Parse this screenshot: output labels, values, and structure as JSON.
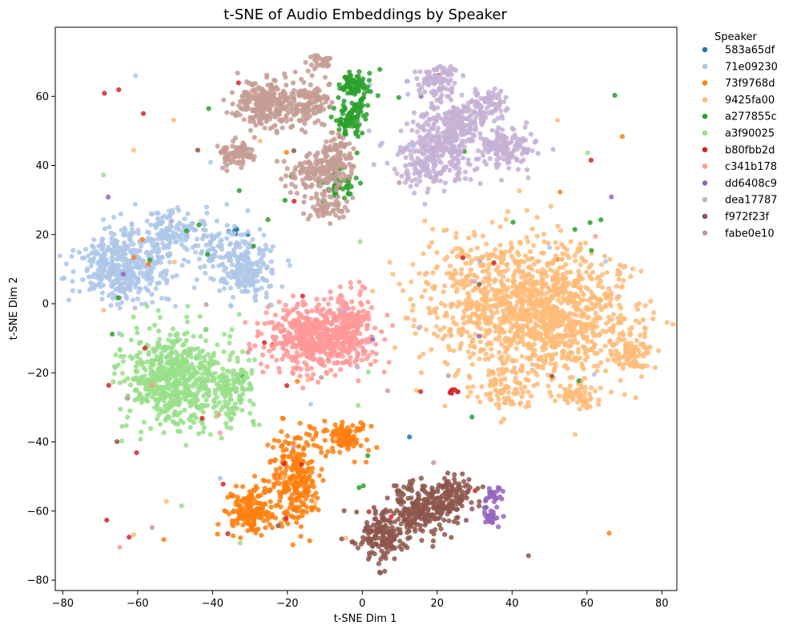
{
  "chart_data": {
    "type": "scatter",
    "title": "t-SNE of Audio Embeddings by Speaker",
    "xlabel": "t-SNE Dim 1",
    "ylabel": "t-SNE Dim 2",
    "xlim": [
      -82,
      84
    ],
    "ylim": [
      -83,
      80
    ],
    "xticks": [
      -80,
      -60,
      -40,
      -20,
      0,
      20,
      40,
      60,
      80
    ],
    "yticks": [
      -80,
      -60,
      -40,
      -20,
      0,
      20,
      40,
      60
    ],
    "xtick_labels": [
      "−80",
      "−60",
      "−40",
      "−20",
      "0",
      "20",
      "40",
      "60",
      "80"
    ],
    "ytick_labels": [
      "−80",
      "−60",
      "−40",
      "−20",
      "0",
      "20",
      "40",
      "60"
    ],
    "grid": false,
    "legend": {
      "title": "Speaker",
      "placement": "outside-right"
    },
    "series": [
      {
        "name": "583a65df",
        "color": "#1f77b4",
        "clusters": [
          {
            "cx": -33,
            "cy": 21,
            "sx": 1.5,
            "sy": 1.2,
            "n": 6
          }
        ],
        "scatter": 1
      },
      {
        "name": "71e09230",
        "color": "#aec7e8",
        "clusters": [
          {
            "cx": -64,
            "cy": 11,
            "sx": 6,
            "sy": 5,
            "n": 420
          },
          {
            "cx": -52,
            "cy": 21,
            "sx": 3.5,
            "sy": 3,
            "n": 110
          },
          {
            "cx": -31,
            "cy": 10,
            "sx": 4,
            "sy": 4.5,
            "n": 200
          },
          {
            "cx": -40,
            "cy": 18,
            "sx": 5,
            "sy": 5,
            "n": 90
          }
        ],
        "scatter": 12
      },
      {
        "name": "73f9768d",
        "color": "#ff7f0e",
        "clusters": [
          {
            "cx": -30,
            "cy": -60,
            "sx": 3,
            "sy": 3,
            "n": 160
          },
          {
            "cx": -18,
            "cy": -50,
            "sx": 3.5,
            "sy": 7,
            "n": 260
          },
          {
            "cx": -5,
            "cy": -39,
            "sx": 3,
            "sy": 2.5,
            "n": 110
          }
        ],
        "scatter": 10
      },
      {
        "name": "9425fa00",
        "color": "#ffbb78",
        "clusters": [
          {
            "cx": 40,
            "cy": 0,
            "sx": 12,
            "sy": 10,
            "n": 900
          },
          {
            "cx": 55,
            "cy": -5,
            "sx": 10,
            "sy": 9,
            "n": 500
          },
          {
            "cx": 38,
            "cy": -25,
            "sx": 4,
            "sy": 4,
            "n": 80
          },
          {
            "cx": 72,
            "cy": -15,
            "sx": 3,
            "sy": 2.5,
            "n": 70
          },
          {
            "cx": 58,
            "cy": -27,
            "sx": 2.5,
            "sy": 2,
            "n": 50
          }
        ],
        "scatter": 20
      },
      {
        "name": "a277855c",
        "color": "#2ca02c",
        "clusters": [
          {
            "cx": -2,
            "cy": 63,
            "sx": 2,
            "sy": 2,
            "n": 80
          },
          {
            "cx": -3,
            "cy": 54,
            "sx": 2,
            "sy": 3,
            "n": 90
          },
          {
            "cx": -6,
            "cy": 34,
            "sx": 2,
            "sy": 2,
            "n": 45
          }
        ],
        "scatter": 30
      },
      {
        "name": "a3f90025",
        "color": "#98df8a",
        "clusters": [
          {
            "cx": -50,
            "cy": -22,
            "sx": 7,
            "sy": 7,
            "n": 600
          },
          {
            "cx": -35,
            "cy": -24,
            "sx": 3,
            "sy": 5,
            "n": 120
          }
        ],
        "scatter": 8
      },
      {
        "name": "b80fbb2d",
        "color": "#d62728",
        "clusters": [
          {
            "cx": 25,
            "cy": -25,
            "sx": 0.8,
            "sy": 0.8,
            "n": 8
          }
        ],
        "scatter": 28
      },
      {
        "name": "c341b178",
        "color": "#ff9896",
        "clusters": [
          {
            "cx": -12,
            "cy": -10,
            "sx": 7,
            "sy": 5,
            "n": 520
          },
          {
            "cx": -3,
            "cy": -5,
            "sx": 3,
            "sy": 5,
            "n": 120
          }
        ],
        "scatter": 8
      },
      {
        "name": "dd6408c9",
        "color": "#9467bd",
        "clusters": [
          {
            "cx": 35,
            "cy": -55,
            "sx": 1.2,
            "sy": 1.2,
            "n": 30
          },
          {
            "cx": 34,
            "cy": -61,
            "sx": 1.2,
            "sy": 1.4,
            "n": 30
          }
        ],
        "scatter": 6
      },
      {
        "name": "dea17787",
        "color": "#c5b0d5",
        "clusters": [
          {
            "cx": 20,
            "cy": 64,
            "sx": 3,
            "sy": 2.5,
            "n": 90
          },
          {
            "cx": 25,
            "cy": 52,
            "sx": 5,
            "sy": 4,
            "n": 220
          },
          {
            "cx": 18,
            "cy": 42,
            "sx": 5,
            "sy": 4,
            "n": 220
          },
          {
            "cx": 38,
            "cy": 45,
            "sx": 4,
            "sy": 3,
            "n": 140
          },
          {
            "cx": 34,
            "cy": 58,
            "sx": 3,
            "sy": 2.5,
            "n": 70
          }
        ],
        "scatter": 10
      },
      {
        "name": "f972f23f",
        "color": "#8c564b",
        "clusters": [
          {
            "cx": 5,
            "cy": -67,
            "sx": 3.5,
            "sy": 3.5,
            "n": 160
          },
          {
            "cx": 15,
            "cy": -60,
            "sx": 4,
            "sy": 4,
            "n": 200
          },
          {
            "cx": 24,
            "cy": -56,
            "sx": 3,
            "sy": 3,
            "n": 120
          }
        ],
        "scatter": 8
      },
      {
        "name": "fabe0e10",
        "color": "#c49c94",
        "clusters": [
          {
            "cx": -26,
            "cy": 58,
            "sx": 4,
            "sy": 3.5,
            "n": 260
          },
          {
            "cx": -14,
            "cy": 58,
            "sx": 3,
            "sy": 3.5,
            "n": 130
          },
          {
            "cx": -33,
            "cy": 43,
            "sx": 2.5,
            "sy": 2,
            "n": 90
          },
          {
            "cx": -12,
            "cy": 38,
            "sx": 4,
            "sy": 3,
            "n": 150
          },
          {
            "cx": -9,
            "cy": 28,
            "sx": 2.5,
            "sy": 2,
            "n": 60
          },
          {
            "cx": -12,
            "cy": 70,
            "sx": 1.5,
            "sy": 1.2,
            "n": 25
          },
          {
            "cx": -7,
            "cy": 43,
            "sx": 2.5,
            "sy": 3,
            "n": 80
          }
        ],
        "scatter": 10
      }
    ]
  }
}
